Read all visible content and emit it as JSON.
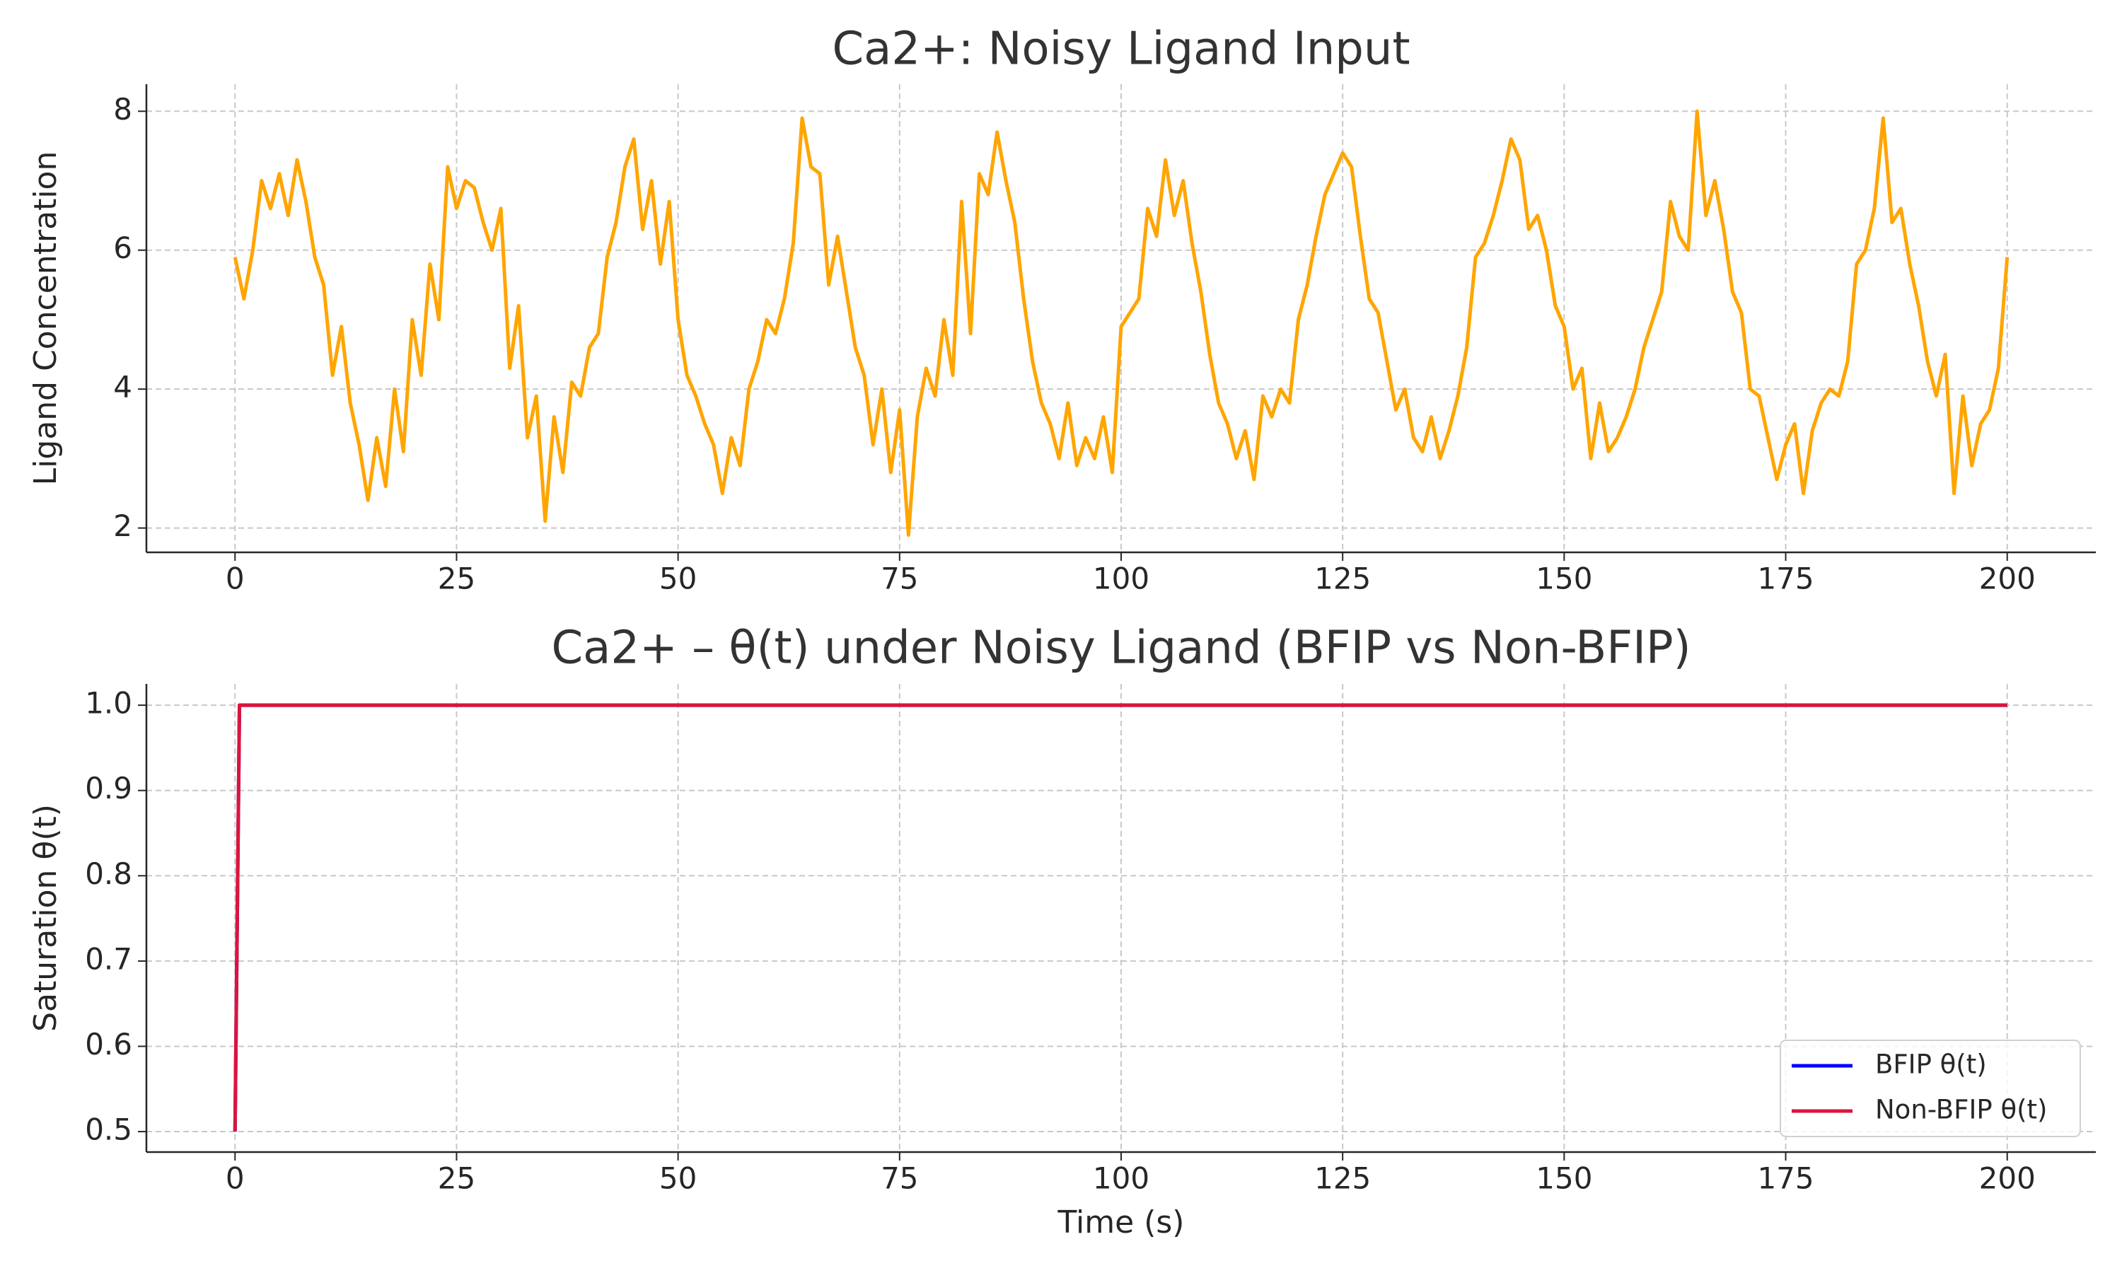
{
  "chart_data": [
    {
      "type": "line",
      "title": "Ca2+: Noisy Ligand Input",
      "ylabel": "Ligand Concentration",
      "x": [
        0,
        1,
        2,
        3,
        4,
        5,
        6,
        7,
        8,
        9,
        10,
        11,
        12,
        13,
        14,
        15,
        16,
        17,
        18,
        19,
        20,
        21,
        22,
        23,
        24,
        25,
        26,
        27,
        28,
        29,
        30,
        31,
        32,
        33,
        34,
        35,
        36,
        37,
        38,
        39,
        40,
        41,
        42,
        43,
        44,
        45,
        46,
        47,
        48,
        49,
        50,
        51,
        52,
        53,
        54,
        55,
        56,
        57,
        58,
        59,
        60,
        61,
        62,
        63,
        64,
        65,
        66,
        67,
        68,
        69,
        70,
        71,
        72,
        73,
        74,
        75,
        76,
        77,
        78,
        79,
        80,
        81,
        82,
        83,
        84,
        85,
        86,
        87,
        88,
        89,
        90,
        91,
        92,
        93,
        94,
        95,
        96,
        97,
        98,
        99,
        100,
        101,
        102,
        103,
        104,
        105,
        106,
        107,
        108,
        109,
        110,
        111,
        112,
        113,
        114,
        115,
        116,
        117,
        118,
        119,
        120,
        121,
        122,
        123,
        124,
        125,
        126,
        127,
        128,
        129,
        130,
        131,
        132,
        133,
        134,
        135,
        136,
        137,
        138,
        139,
        140,
        141,
        142,
        143,
        144,
        145,
        146,
        147,
        148,
        149,
        150,
        151,
        152,
        153,
        154,
        155,
        156,
        157,
        158,
        159,
        160,
        161,
        162,
        163,
        164,
        165,
        166,
        167,
        168,
        169,
        170,
        171,
        172,
        173,
        174,
        175,
        176,
        177,
        178,
        179,
        180,
        181,
        182,
        183,
        184,
        185,
        186,
        187,
        188,
        189,
        190,
        191,
        192,
        193,
        194,
        195,
        196,
        197,
        198,
        199,
        200
      ],
      "series": [
        {
          "color": "#ffa500",
          "values": [
            5.9,
            5.3,
            6.0,
            7.0,
            6.6,
            7.1,
            6.5,
            7.3,
            6.7,
            5.9,
            5.5,
            4.2,
            4.9,
            3.8,
            3.2,
            2.4,
            3.3,
            2.6,
            4.0,
            3.1,
            5.0,
            4.2,
            5.8,
            5.0,
            7.2,
            6.6,
            7.0,
            6.9,
            6.4,
            6.0,
            6.6,
            4.3,
            5.2,
            3.3,
            3.9,
            2.1,
            3.6,
            2.8,
            4.1,
            3.9,
            4.6,
            4.8,
            5.9,
            6.4,
            7.2,
            7.6,
            6.3,
            7.0,
            5.8,
            6.7,
            5.0,
            4.2,
            3.9,
            3.5,
            3.2,
            2.5,
            3.3,
            2.9,
            4.0,
            4.4,
            5.0,
            4.8,
            5.3,
            6.1,
            7.9,
            7.2,
            7.1,
            5.5,
            6.2,
            5.4,
            4.6,
            4.2,
            3.2,
            4.0,
            2.8,
            3.7,
            1.9,
            3.6,
            4.3,
            3.9,
            5.0,
            4.2,
            6.7,
            4.8,
            7.1,
            6.8,
            7.7,
            7.0,
            6.4,
            5.3,
            4.4,
            3.8,
            3.5,
            3.0,
            3.8,
            2.9,
            3.3,
            3.0,
            3.6,
            2.8,
            4.9,
            5.1,
            5.3,
            6.6,
            6.2,
            7.3,
            6.5,
            7.0,
            6.1,
            5.4,
            4.5,
            3.8,
            3.5,
            3.0,
            3.4,
            2.7,
            3.9,
            3.6,
            4.0,
            3.8,
            5.0,
            5.5,
            6.2,
            6.8,
            7.1,
            7.4,
            7.2,
            6.2,
            5.3,
            5.1,
            4.4,
            3.7,
            4.0,
            3.3,
            3.1,
            3.6,
            3.0,
            3.4,
            3.9,
            4.6,
            5.9,
            6.1,
            6.5,
            7.0,
            7.6,
            7.3,
            6.3,
            6.5,
            6.0,
            5.2,
            4.9,
            4.0,
            4.3,
            3.0,
            3.8,
            3.1,
            3.3,
            3.6,
            4.0,
            4.6,
            5.0,
            5.4,
            6.7,
            6.2,
            6.0,
            8.0,
            6.5,
            7.0,
            6.3,
            5.4,
            5.1,
            4.0,
            3.9,
            3.3,
            2.7,
            3.2,
            3.5,
            2.5,
            3.4,
            3.8,
            4.0,
            3.9,
            4.4,
            5.8,
            6.0,
            6.6,
            7.9,
            6.4,
            6.6,
            5.8,
            5.2,
            4.4,
            3.9,
            4.5,
            2.5,
            3.9,
            2.9,
            3.5,
            3.7,
            4.3,
            5.9
          ]
        }
      ],
      "xlim": [
        -10,
        210
      ],
      "xticks": [
        0,
        25,
        50,
        75,
        100,
        125,
        150,
        175,
        200
      ],
      "ylim": [
        1.65,
        8.39
      ],
      "yticks": [
        2,
        4,
        6,
        8
      ],
      "grid": true
    },
    {
      "type": "line",
      "title": "Ca2+ – θ(t) under Noisy Ligand (BFIP vs Non-BFIP)",
      "xlabel": "Time (s)",
      "ylabel": "Saturation θ(t)",
      "x": [
        0,
        0.5,
        200
      ],
      "series": [
        {
          "name": "BFIP θ(t)",
          "color": "#0000ff",
          "values": [
            0.5,
            1.0,
            1.0
          ]
        },
        {
          "name": "Non-BFIP θ(t)",
          "color": "#dc143c",
          "values": [
            0.5,
            1.0,
            1.0
          ]
        }
      ],
      "xlim": [
        -10,
        210
      ],
      "xticks": [
        0,
        25,
        50,
        75,
        100,
        125,
        150,
        175,
        200
      ],
      "ylim": [
        0.476,
        1.025
      ],
      "yticks": [
        0.5,
        0.6,
        0.7,
        0.8,
        0.9,
        {
          "value": 1.0,
          "label": "1.0"
        }
      ],
      "grid": true,
      "legend": "lower right"
    }
  ]
}
